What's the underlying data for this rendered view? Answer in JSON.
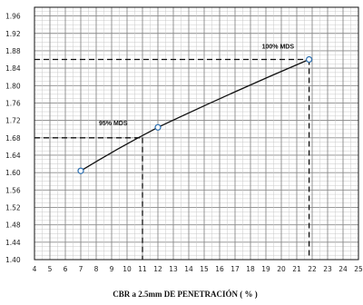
{
  "chart_data": {
    "type": "line",
    "title": "",
    "xlabel": "CBR a 2.5mm DE PENETRACIÓN  ( % )",
    "ylabel": "",
    "xlim": [
      4,
      25
    ],
    "ylim": [
      1.4,
      1.98
    ],
    "x_ticks": [
      4,
      5,
      6,
      7,
      8,
      9,
      10,
      11,
      12,
      13,
      14,
      15,
      16,
      17,
      18,
      19,
      20,
      21,
      22,
      23,
      24,
      25
    ],
    "x_tick_labels": [
      "4",
      "5",
      "6",
      "7",
      "8",
      "9",
      "10",
      "11",
      "12",
      "13",
      "14",
      "15",
      "16",
      "17",
      "18",
      "19",
      "20",
      "21",
      "22",
      "23",
      "24",
      "25"
    ],
    "y_ticks": [
      1.4,
      1.44,
      1.48,
      1.52,
      1.56,
      1.6,
      1.64,
      1.68,
      1.72,
      1.76,
      1.8,
      1.84,
      1.88,
      1.92,
      1.96
    ],
    "y_tick_labels": [
      "1.40",
      "1.44",
      "1.48",
      "1.52",
      "1.56",
      "1.60",
      "1.64",
      "1.68",
      "1.72",
      "1.76",
      "1.80",
      "1.84",
      "1.88",
      "1.92",
      "1.96"
    ],
    "grid": true,
    "series": [
      {
        "x": [
          7.0,
          12.0,
          21.8
        ],
        "y": [
          1.604,
          1.704,
          1.86
        ]
      }
    ],
    "reference_lines": [
      {
        "label": "100% MDS",
        "x": 21.8,
        "y": 1.86
      },
      {
        "label": "95% MDS",
        "x": 11.0,
        "y": 1.68
      }
    ]
  }
}
